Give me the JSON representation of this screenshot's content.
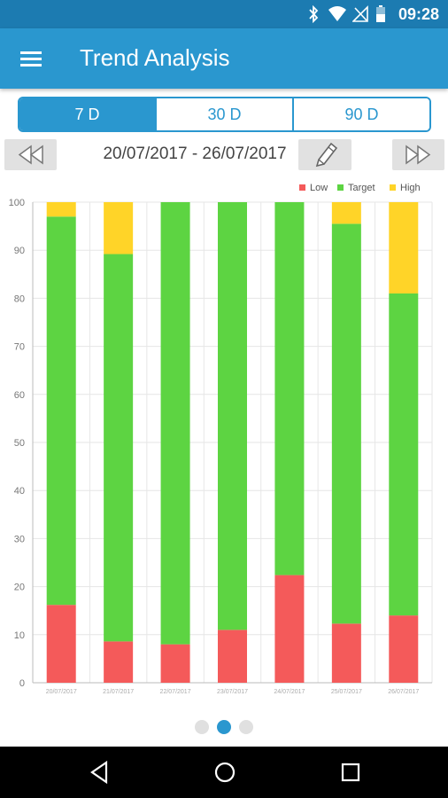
{
  "status_bar": {
    "time": "09:28"
  },
  "app_bar": {
    "title": "Trend Analysis"
  },
  "tabs": [
    {
      "label": "7 D",
      "active": true
    },
    {
      "label": "30 D",
      "active": false
    },
    {
      "label": "90 D",
      "active": false
    }
  ],
  "date_nav": {
    "range": "20/07/2017 - 26/07/2017"
  },
  "pager": {
    "count": 3,
    "active_index": 1
  },
  "chart_data": {
    "type": "bar",
    "stacked": true,
    "categories": [
      "20/07/2017",
      "21/07/2017",
      "22/07/2017",
      "23/07/2017",
      "24/07/2017",
      "25/07/2017",
      "26/07/2017"
    ],
    "series": [
      {
        "name": "Low",
        "color": "#f45a5a",
        "values": [
          16.2,
          8.6,
          8,
          11,
          22.4,
          12.3,
          14
        ]
      },
      {
        "name": "Target",
        "color": "#5dd442",
        "values": [
          80.8,
          80.6,
          92,
          89,
          77.6,
          83.2,
          67
        ]
      },
      {
        "name": "High",
        "color": "#ffd428",
        "values": [
          3,
          10.8,
          0,
          0,
          0,
          4.5,
          19
        ]
      }
    ],
    "ylim": [
      0,
      100
    ],
    "yticks": [
      0,
      10,
      20,
      30,
      40,
      50,
      60,
      70,
      80,
      90,
      100
    ],
    "grid": true,
    "legend_position": "top-right"
  }
}
